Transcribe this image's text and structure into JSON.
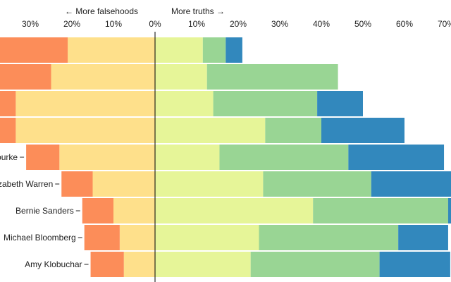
{
  "chart_data": {
    "type": "bar",
    "orientation": "horizontal-diverging",
    "header": {
      "left": "← More falsehoods",
      "right": "More truths →"
    },
    "x_ticks": [
      {
        "value": -30,
        "label": "30%"
      },
      {
        "value": -20,
        "label": "20%"
      },
      {
        "value": -10,
        "label": "10%"
      },
      {
        "value": 0,
        "label": "0%"
      },
      {
        "value": 10,
        "label": "10%"
      },
      {
        "value": 20,
        "label": "20%"
      },
      {
        "value": 30,
        "label": "30%"
      },
      {
        "value": 40,
        "label": "40%"
      },
      {
        "value": 50,
        "label": "50%"
      },
      {
        "value": 60,
        "label": "60%"
      },
      {
        "value": 70,
        "label": "70%"
      }
    ],
    "xlim": [
      -37,
      71
    ],
    "segments": [
      {
        "side": "negative",
        "color": "#fc8d59"
      },
      {
        "side": "negative",
        "color": "#fee08b"
      },
      {
        "side": "positive",
        "color": "#e6f598"
      },
      {
        "side": "positive",
        "color": "#99d594"
      },
      {
        "side": "positive",
        "color": "#3288bd"
      }
    ],
    "rows": [
      {
        "label": "",
        "values": [
          17,
          21,
          11.5,
          5.5,
          4
        ]
      },
      {
        "label": "",
        "values": [
          25,
          25,
          12.5,
          31.5,
          0
        ]
      },
      {
        "label": "",
        "values": [
          33,
          33.5,
          14,
          25,
          11
        ]
      },
      {
        "label": "",
        "values": [
          33,
          33.5,
          26.5,
          13.5,
          20
        ]
      },
      {
        "label": "ourke",
        "values": [
          8,
          23,
          15.5,
          31,
          23
        ]
      },
      {
        "label": "zabeth Warren",
        "values": [
          7.5,
          15,
          26,
          26,
          20
        ]
      },
      {
        "label": "Bernie Sanders",
        "values": [
          7.5,
          10,
          38,
          32.5,
          1
        ]
      },
      {
        "label": "Michael Bloomberg",
        "values": [
          8.5,
          8.5,
          25,
          33.5,
          12
        ]
      },
      {
        "label": "Amy Klobuchar",
        "values": [
          8,
          7.5,
          23,
          31,
          17
        ]
      }
    ]
  }
}
